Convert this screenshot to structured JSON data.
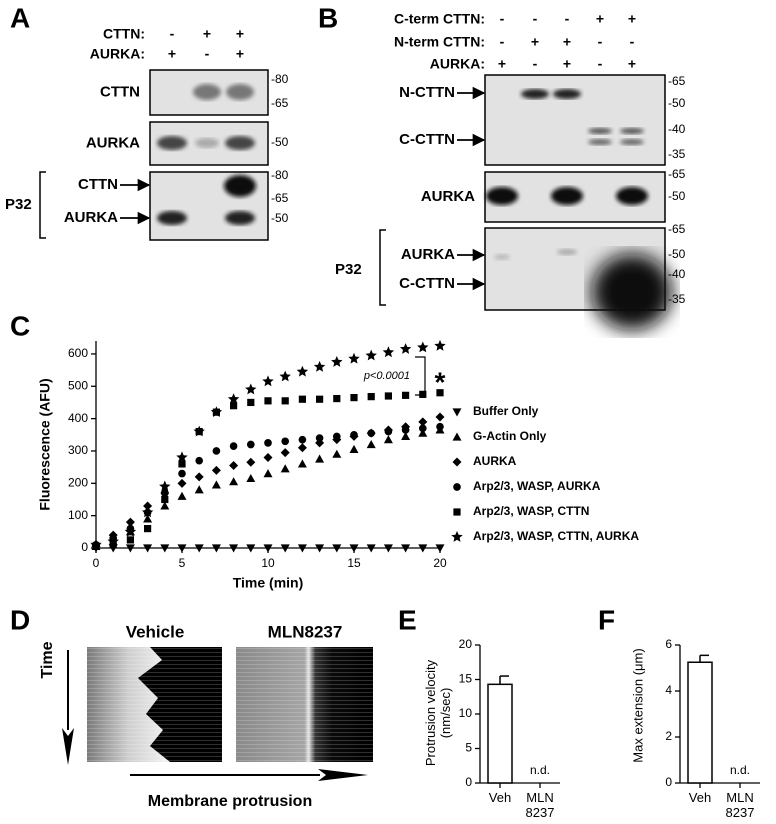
{
  "panel_labels": [
    "A",
    "B",
    "C",
    "D",
    "E",
    "F"
  ],
  "panel_a": {
    "conditions": [
      {
        "label": "CTTN:",
        "signs": [
          "-",
          "+",
          "+"
        ]
      },
      {
        "label": "AURKA:",
        "signs": [
          "+",
          "-",
          "+"
        ]
      }
    ],
    "blots": [
      {
        "label": "CTTN",
        "markers": [
          "-80",
          "-65"
        ]
      },
      {
        "label": "AURKA",
        "markers": [
          "-50"
        ]
      },
      {
        "label": "P32",
        "arrows": [
          "CTTN",
          "AURKA"
        ],
        "markers": [
          "-80",
          "-65",
          "-50"
        ]
      }
    ]
  },
  "panel_b": {
    "conditions": [
      {
        "label": "C-term CTTN:",
        "signs": [
          "-",
          "-",
          "-",
          "+",
          "+"
        ]
      },
      {
        "label": "N-term CTTN:",
        "signs": [
          "-",
          "+",
          "+",
          "-",
          "-"
        ]
      },
      {
        "label": "AURKA:",
        "signs": [
          "+",
          "-",
          "+",
          "-",
          "+"
        ]
      }
    ],
    "blots": [
      {
        "arrows": [
          "N-CTTN",
          "C-CTTN"
        ],
        "markers": [
          "-65",
          "-50",
          "-40",
          "-35"
        ]
      },
      {
        "label": "AURKA",
        "markers": [
          "-65",
          "-50"
        ]
      },
      {
        "label": "P32",
        "arrows": [
          "AURKA",
          "C-CTTN"
        ],
        "markers": [
          "-65",
          "-50",
          "-40",
          "-35"
        ]
      }
    ]
  },
  "panel_d": {
    "conditions": [
      "Vehicle",
      "MLN8237"
    ],
    "y_label": "Time",
    "x_label": "Membrane protrusion"
  },
  "chart_data": [
    {
      "type": "scatter",
      "x_label": "Time (min)",
      "y_label": "Fluorescence (AFU)",
      "x": [
        0,
        1,
        2,
        3,
        4,
        5,
        6,
        7,
        8,
        9,
        10,
        11,
        12,
        13,
        14,
        15,
        16,
        17,
        18,
        19,
        20
      ],
      "xlim": [
        0,
        20
      ],
      "xticks": [
        0,
        5,
        10,
        15,
        20
      ],
      "ylim": [
        0,
        640
      ],
      "yticks": [
        0,
        100,
        200,
        300,
        400,
        500,
        600
      ],
      "legend": "right",
      "annotations": [
        "p<0.0001",
        "*"
      ],
      "series": [
        {
          "name": "Buffer Only",
          "marker": "triangle-down",
          "color": "#000000",
          "values": [
            0,
            0,
            0,
            0,
            0,
            0,
            0,
            0,
            0,
            0,
            0,
            0,
            0,
            0,
            0,
            0,
            0,
            0,
            0,
            0,
            0
          ]
        },
        {
          "name": "G-Actin Only",
          "marker": "triangle-up",
          "color": "#000000",
          "values": [
            5,
            20,
            50,
            90,
            130,
            160,
            180,
            195,
            205,
            215,
            230,
            245,
            260,
            275,
            290,
            305,
            320,
            335,
            345,
            355,
            365
          ]
        },
        {
          "name": "AURKA",
          "marker": "diamond",
          "color": "#000000",
          "values": [
            5,
            40,
            80,
            130,
            170,
            200,
            220,
            240,
            255,
            265,
            280,
            295,
            310,
            325,
            335,
            345,
            355,
            365,
            375,
            390,
            405
          ]
        },
        {
          "name": "Arp2/3, WASP, AURKA",
          "marker": "circle",
          "color": "#000000",
          "values": [
            10,
            30,
            60,
            110,
            170,
            230,
            270,
            300,
            315,
            320,
            325,
            330,
            335,
            340,
            345,
            350,
            355,
            360,
            365,
            370,
            375
          ]
        },
        {
          "name": "Arp2/3, WASP, CTTN",
          "marker": "square",
          "color": "#000000",
          "values": [
            5,
            10,
            25,
            60,
            150,
            260,
            360,
            420,
            440,
            450,
            455,
            455,
            460,
            460,
            462,
            465,
            468,
            470,
            472,
            475,
            480
          ]
        },
        {
          "name": "Arp2/3, WASP, CTTN, AURKA",
          "marker": "star",
          "color": "#000000",
          "values": [
            10,
            20,
            50,
            110,
            190,
            280,
            360,
            420,
            460,
            490,
            515,
            530,
            545,
            560,
            575,
            585,
            595,
            605,
            615,
            620,
            625
          ]
        }
      ]
    },
    {
      "type": "bar",
      "y_label": "Protrusion velocity (nm/sec)",
      "categories": [
        "Veh",
        "MLN 8237"
      ],
      "values": [
        14.3,
        null
      ],
      "errors": [
        1.2,
        null
      ],
      "value_labels": [
        null,
        "n.d."
      ],
      "ylim": [
        0,
        20
      ],
      "yticks": [
        0,
        5,
        10,
        15,
        20
      ],
      "color": "#ffffff"
    },
    {
      "type": "bar",
      "y_label": "Max extension (μm)",
      "categories": [
        "Veh",
        "MLN 8237"
      ],
      "values": [
        5.25,
        null
      ],
      "errors": [
        0.3,
        null
      ],
      "value_labels": [
        null,
        "n.d."
      ],
      "ylim": [
        0,
        6
      ],
      "yticks": [
        0,
        2,
        4,
        6
      ],
      "color": "#ffffff"
    }
  ]
}
